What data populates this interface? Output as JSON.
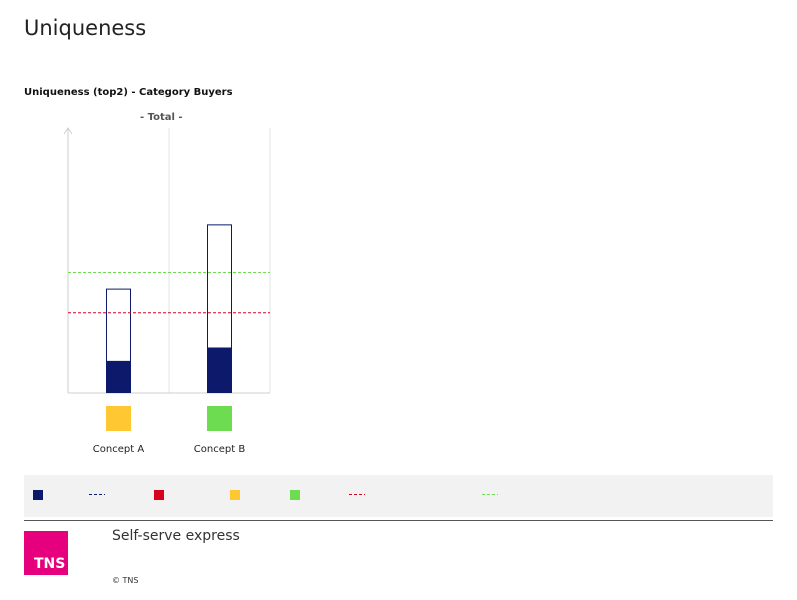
{
  "page": {
    "title": "Uniqueness"
  },
  "chart_data": {
    "type": "bar",
    "title": "Uniqueness (top2) - Category Buyers",
    "subtitle": "- Total -",
    "categories": [
      "Concept A",
      "Concept B"
    ],
    "category_colors": [
      "#ffc832",
      "#6edc50"
    ],
    "series": [
      {
        "values": [
          12,
          17
        ],
        "color": "#0d1a6b",
        "style": "filled"
      },
      {
        "values": [
          39,
          63
        ],
        "color": "#0d1a6b",
        "style": "outline"
      }
    ],
    "reference_lines": [
      {
        "value": 30,
        "color": "#d7001e",
        "style": "dashed"
      },
      {
        "value": 45,
        "color": "#6edc50",
        "style": "dashed"
      }
    ],
    "ylim": [
      0,
      99
    ],
    "grid": true,
    "xlabel": "",
    "ylabel": ""
  },
  "legend": {
    "items": [
      {
        "icon": "filled-navy-square",
        "color": "#0d1a6b"
      },
      {
        "icon": "outline-navy-square",
        "color": "#0d1a6b"
      },
      {
        "icon": "red-square",
        "color": "#d7001e"
      },
      {
        "icon": "yellow-square",
        "color": "#ffc832"
      },
      {
        "icon": "green-square",
        "color": "#6edc50"
      },
      {
        "icon": "red-dashed-line",
        "color": "#d7001e"
      },
      {
        "icon": "green-dashed-line",
        "color": "#6edc50"
      }
    ]
  },
  "footer": {
    "logo_text": "TNS",
    "product": "Self-serve express",
    "copyright": "© TNS"
  }
}
